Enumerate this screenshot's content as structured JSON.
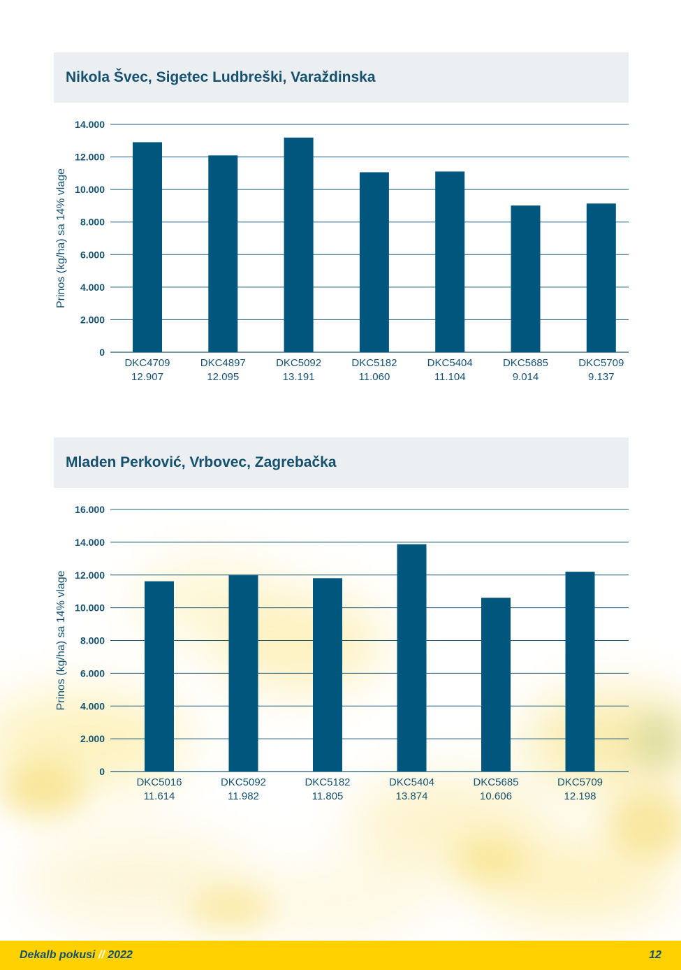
{
  "chart_data": [
    {
      "type": "bar",
      "title": "Nikola Švec, Sigetec Ludbreški, Varaždinska",
      "ylabel": "Prinos (kg/ha) sa 14% vlage",
      "categories": [
        "DKC4709",
        "DKC4897",
        "DKC5092",
        "DKC5182",
        "DKC5404",
        "DKC5685",
        "DKC5709"
      ],
      "value_labels": [
        "12.907",
        "12.095",
        "13.191",
        "11.060",
        "11.104",
        "9.014",
        "9.137"
      ],
      "values": [
        12907,
        12095,
        13191,
        11060,
        11104,
        9014,
        9137
      ],
      "ylim": [
        0,
        14000
      ],
      "yticks": [
        "0",
        "2.000",
        "4.000",
        "6.000",
        "8.000",
        "10.000",
        "12.000",
        "14.000"
      ],
      "grid": true,
      "bar_color": "#00567d",
      "grid_color": "#1e5a78"
    },
    {
      "type": "bar",
      "title": "Mladen Perković, Vrbovec, Zagrebačka",
      "ylabel": "Prinos (kg/ha) sa 14% vlage",
      "categories": [
        "DKC5016",
        "DKC5092",
        "DKC5182",
        "DKC5404",
        "DKC5685",
        "DKC5709"
      ],
      "value_labels": [
        "11.614",
        "11.982",
        "11.805",
        "13.874",
        "10.606",
        "12.198"
      ],
      "values": [
        11614,
        11982,
        11805,
        13874,
        10606,
        12198
      ],
      "ylim": [
        0,
        16000
      ],
      "yticks": [
        "0",
        "2.000",
        "4.000",
        "6.000",
        "8.000",
        "10.000",
        "12.000",
        "14.000",
        "16.000"
      ],
      "grid": true,
      "bar_color": "#00567d",
      "grid_color": "#1e5a78"
    }
  ],
  "footer": {
    "brand": "Dekalb pokusi",
    "separator": "//",
    "year": "2022",
    "page_number": "12"
  },
  "colors": {
    "title_bg": "#eceff1",
    "title_text": "#15516f",
    "footer_bg": "#ffd100"
  }
}
